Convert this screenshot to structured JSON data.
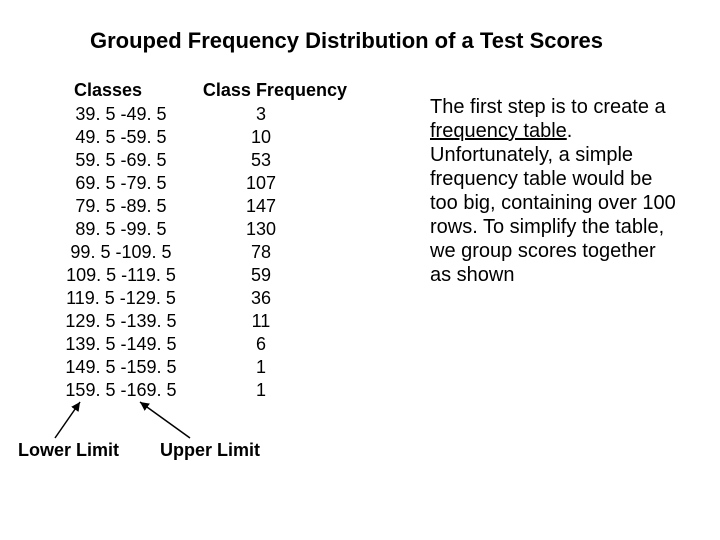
{
  "title": "Grouped Frequency Distribution of a Test Scores",
  "table": {
    "header_classes": "Classes",
    "header_freq": "Class Frequency",
    "rows": [
      {
        "cls": "39. 5 -49. 5",
        "freq": "3"
      },
      {
        "cls": "49. 5 -59. 5",
        "freq": "10"
      },
      {
        "cls": "59. 5 -69. 5",
        "freq": "53"
      },
      {
        "cls": "69. 5 -79. 5",
        "freq": "107"
      },
      {
        "cls": "79. 5 -89. 5",
        "freq": "147"
      },
      {
        "cls": "89. 5 -99. 5",
        "freq": "130"
      },
      {
        "cls": "99. 5 -109. 5",
        "freq": "78"
      },
      {
        "cls": "109. 5 -119. 5",
        "freq": "59"
      },
      {
        "cls": "119. 5 -129. 5",
        "freq": "36"
      },
      {
        "cls": "129. 5 -139. 5",
        "freq": "11"
      },
      {
        "cls": "139. 5 -149. 5",
        "freq": "6"
      },
      {
        "cls": "149. 5 -159. 5",
        "freq": "1"
      },
      {
        "cls": "159. 5 -169. 5",
        "freq": "1"
      }
    ]
  },
  "paragraph": {
    "part1": "The first step is to create a ",
    "underline": "frequency table",
    "part2": ". Unfortunately, a simple frequency table would be too big, containing over 100 rows. To simplify the table, we group scores together as shown"
  },
  "labels": {
    "lower": "Lower Limit",
    "upper": "Upper Limit"
  },
  "style": {
    "background_color": "#ffffff",
    "text_color": "#000000",
    "title_fontsize": 22,
    "body_fontsize": 18,
    "para_fontsize": 20,
    "arrow_color": "#000000"
  }
}
